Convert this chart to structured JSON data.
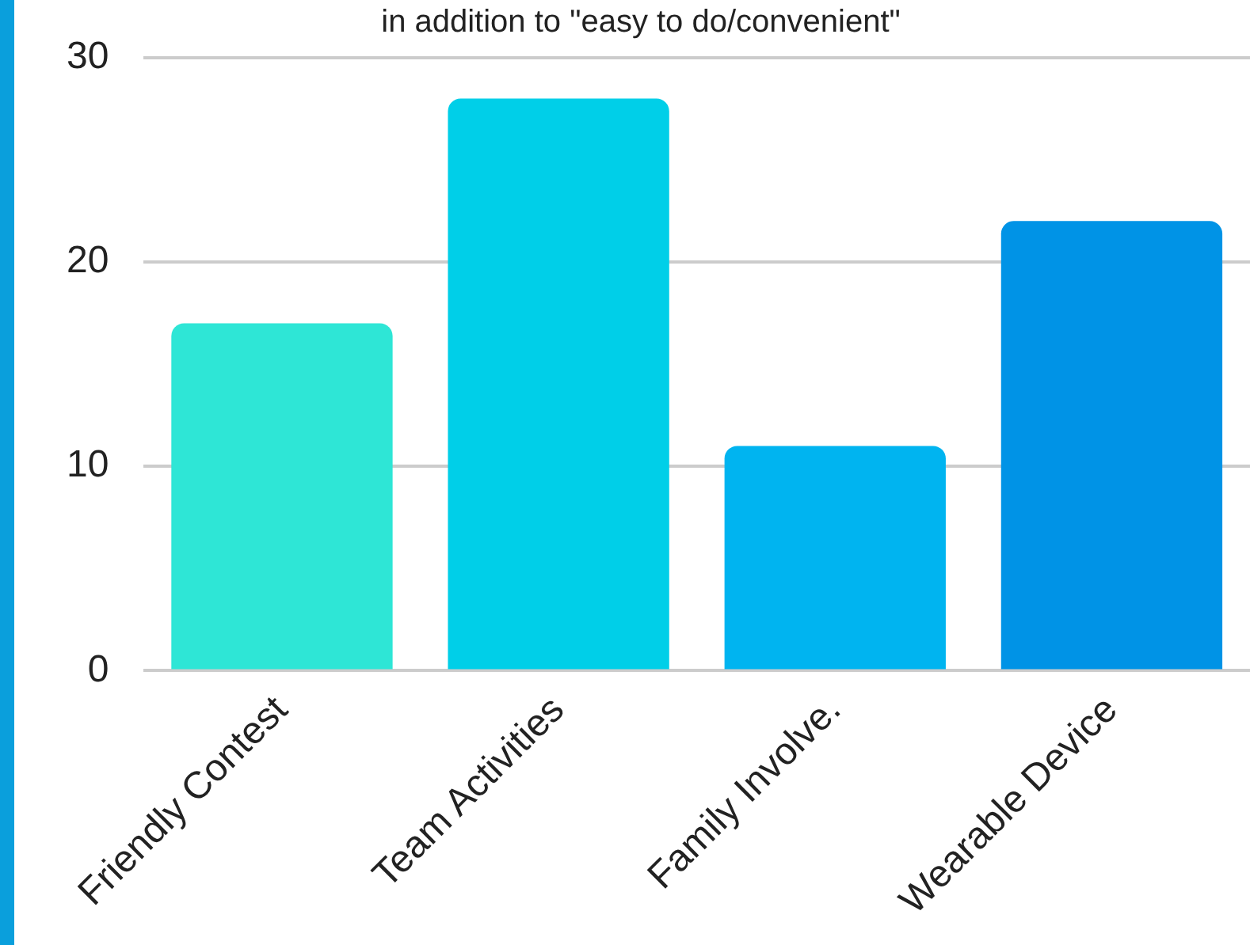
{
  "chart_data": {
    "type": "bar",
    "title": "in addition to \"easy to do/convenient\"",
    "categories": [
      "Friendly Contest",
      "Team Activities",
      "Family Involve.",
      "Wearable Device"
    ],
    "values": [
      17,
      28,
      11,
      22
    ],
    "colors": [
      "#2ee6d6",
      "#00cfe8",
      "#00b4f0",
      "#0093e6"
    ],
    "ylim": [
      0,
      30
    ],
    "yticks": [
      0,
      10,
      20,
      30
    ],
    "grid": "y",
    "legend": false
  }
}
